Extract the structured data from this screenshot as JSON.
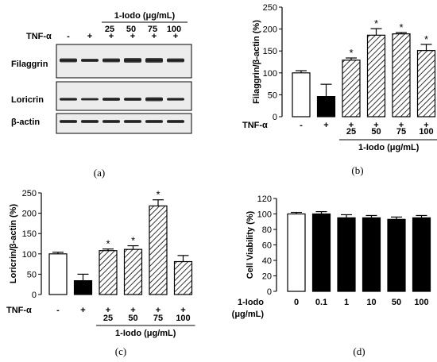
{
  "blot": {
    "header": "1-Iodo (μg/mL)",
    "tnf_label": "TNF-α",
    "doses": [
      "25",
      "50",
      "75",
      "100"
    ],
    "tnf_signs": [
      "-",
      "+",
      "+",
      "+",
      "+",
      "+"
    ],
    "rows": [
      "Filaggrin",
      "Loricrin",
      "β-actin"
    ],
    "caption": "(a)"
  },
  "chart_data": [
    {
      "id": "b",
      "type": "bar",
      "ylabel": "Filaggrin/β-actin (%)",
      "ylim": [
        0,
        250
      ],
      "yticks": [
        "0",
        "50",
        "100",
        "150",
        "200",
        "250"
      ],
      "categories": [
        "-",
        "+",
        "25",
        "50",
        "75",
        "100"
      ],
      "values": [
        100,
        46,
        129,
        186,
        189,
        151
      ],
      "errors": [
        5,
        28,
        5,
        15,
        3,
        14
      ],
      "significant": [
        false,
        false,
        true,
        true,
        true,
        true
      ],
      "styles": [
        "white",
        "black",
        "hatch",
        "hatch",
        "hatch",
        "hatch"
      ],
      "tnf_label": "TNF-α",
      "tnf_signs": [
        "-",
        "+",
        "+",
        "+",
        "+",
        "+"
      ],
      "dose_labels": [
        "25",
        "50",
        "75",
        "100"
      ],
      "group_label": "1-Iodo (μg/mL)",
      "star": "*",
      "caption": "(b)"
    },
    {
      "id": "c",
      "type": "bar",
      "ylabel": "Loricrin/β-actin (%)",
      "ylim": [
        0,
        250
      ],
      "yticks": [
        "0",
        "50",
        "100",
        "150",
        "200",
        "250"
      ],
      "categories": [
        "-",
        "+",
        "25",
        "50",
        "75",
        "100"
      ],
      "values": [
        100,
        34,
        108,
        111,
        218,
        81
      ],
      "errors": [
        4,
        16,
        4,
        9,
        15,
        15
      ],
      "significant": [
        false,
        false,
        true,
        true,
        true,
        false
      ],
      "styles": [
        "white",
        "black",
        "hatch",
        "hatch",
        "hatch",
        "hatch"
      ],
      "tnf_label": "TNF-α",
      "tnf_signs": [
        "-",
        "+",
        "+",
        "+",
        "+",
        "+"
      ],
      "dose_labels": [
        "25",
        "50",
        "75",
        "100"
      ],
      "group_label": "1-Iodo (μg/mL)",
      "star": "*",
      "caption": "(c)"
    },
    {
      "id": "d",
      "type": "bar",
      "ylabel": "Cell Viability (%)",
      "ylim": [
        0,
        120
      ],
      "yticks": [
        "0",
        "20",
        "40",
        "60",
        "80",
        "100",
        "120"
      ],
      "categories": [
        "0",
        "0.1",
        "1",
        "10",
        "50",
        "100"
      ],
      "values": [
        100,
        100,
        95,
        95,
        93,
        95
      ],
      "errors": [
        2,
        3,
        4,
        3,
        3,
        3
      ],
      "significant": [
        false,
        false,
        false,
        false,
        false,
        false
      ],
      "styles": [
        "white",
        "black",
        "black",
        "black",
        "black",
        "black"
      ],
      "xlabel_lines": [
        "1-Iodo",
        "(μg/mL)"
      ],
      "caption": "(d)"
    }
  ]
}
